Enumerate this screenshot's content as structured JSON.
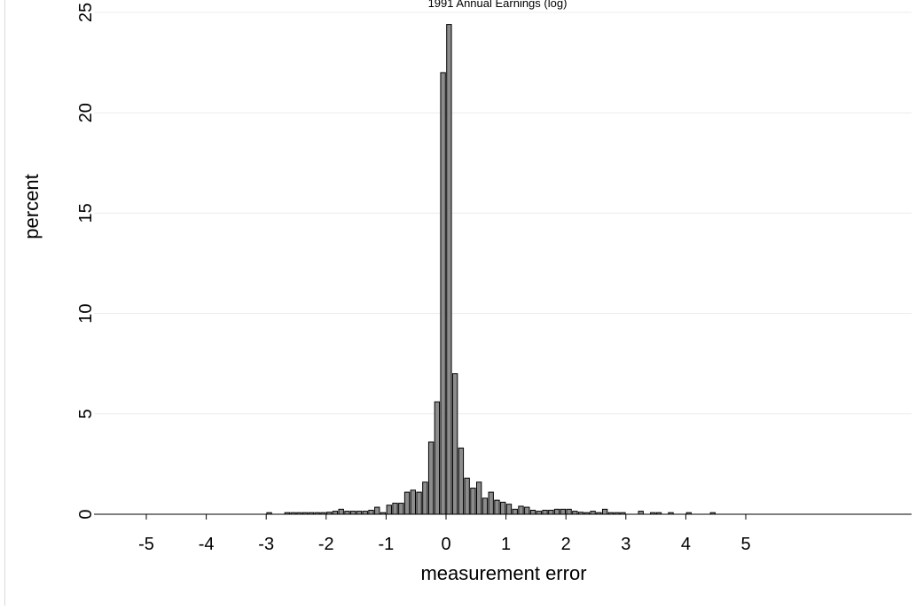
{
  "chart_data": {
    "type": "bar",
    "title": "1991 Annual Earnings (log)",
    "xlabel": "measurement error",
    "ylabel": "percent",
    "xlim": [
      -5.5,
      7.8
    ],
    "ylim": [
      0,
      25
    ],
    "x_ticks": [
      -5,
      -4,
      -3,
      -2,
      -1,
      0,
      1,
      2,
      3,
      4,
      5
    ],
    "y_ticks": [
      0,
      5,
      10,
      15,
      20,
      25
    ],
    "grid": "horizontal",
    "bin_width": 0.1,
    "bar_color": "#8c8c8c",
    "bar_edge_color": "#000000",
    "x": [
      -2.95,
      -2.65,
      -2.55,
      -2.45,
      -2.35,
      -2.25,
      -2.15,
      -2.05,
      -1.95,
      -1.85,
      -1.75,
      -1.65,
      -1.55,
      -1.45,
      -1.35,
      -1.25,
      -1.15,
      -1.05,
      -0.95,
      -0.85,
      -0.75,
      -0.65,
      -0.55,
      -0.45,
      -0.35,
      -0.25,
      -0.15,
      -0.05,
      0.05,
      0.15,
      0.25,
      0.35,
      0.45,
      0.55,
      0.65,
      0.75,
      0.85,
      0.95,
      1.05,
      1.15,
      1.25,
      1.35,
      1.45,
      1.55,
      1.65,
      1.75,
      1.85,
      1.95,
      2.05,
      2.15,
      2.25,
      2.35,
      2.45,
      2.55,
      2.65,
      2.75,
      2.85,
      2.95,
      3.25,
      3.45,
      3.55,
      3.75,
      4.05,
      4.45
    ],
    "values": [
      0.08,
      0.08,
      0.08,
      0.08,
      0.08,
      0.08,
      0.08,
      0.08,
      0.1,
      0.15,
      0.25,
      0.15,
      0.15,
      0.15,
      0.15,
      0.2,
      0.35,
      0.08,
      0.45,
      0.55,
      0.55,
      1.1,
      1.2,
      1.1,
      1.6,
      3.6,
      5.6,
      22.0,
      24.4,
      7.0,
      3.3,
      1.8,
      1.3,
      1.6,
      0.8,
      1.1,
      0.7,
      0.6,
      0.5,
      0.25,
      0.4,
      0.35,
      0.2,
      0.15,
      0.2,
      0.2,
      0.25,
      0.25,
      0.25,
      0.15,
      0.1,
      0.08,
      0.15,
      0.08,
      0.25,
      0.08,
      0.08,
      0.08,
      0.15,
      0.08,
      0.08,
      0.08,
      0.08,
      0.08
    ]
  }
}
